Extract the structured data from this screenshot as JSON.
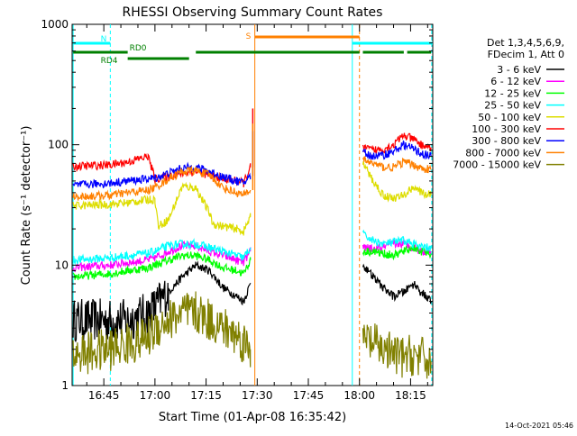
{
  "chart_data": {
    "type": "line",
    "title": "RHESSI Observing Summary Count Rates",
    "xlabel": "Start Time (01-Apr-08 16:35:42)",
    "ylabel": "Count Rate (s⁻¹ detector⁻¹)",
    "y_scale": "log",
    "ylim": [
      1,
      1000
    ],
    "y_ticks": [
      {
        "value": 1,
        "label": "1"
      },
      {
        "value": 10,
        "label": "10"
      },
      {
        "value": 100,
        "label": "100"
      },
      {
        "value": 1000,
        "label": "1000"
      }
    ],
    "x_range_min": [
      35.7,
      141.5
    ],
    "x_ticks": [
      {
        "min": 45,
        "label": "16:45"
      },
      {
        "min": 60,
        "label": "17:00"
      },
      {
        "min": 75,
        "label": "17:15"
      },
      {
        "min": 90,
        "label": "17:30"
      },
      {
        "min": 105,
        "label": "17:45"
      },
      {
        "min": 120,
        "label": "18:00"
      },
      {
        "min": 135,
        "label": "18:15"
      }
    ],
    "timestamp": "14-Oct-2021 05:46",
    "legend": {
      "header": [
        "Det 1,3,4,5,6,9,",
        "FDecim 1, Att 0"
      ],
      "placement": "right"
    },
    "series": [
      {
        "name": "3 - 6 keV",
        "color": "#000000",
        "x": [
          36,
          47,
          52,
          58,
          60,
          64,
          68,
          72,
          76,
          80,
          84,
          86,
          88
        ],
        "y": [
          3.5,
          3.5,
          3.5,
          4,
          4.5,
          6,
          8,
          10,
          9,
          6.5,
          5.5,
          5,
          7
        ]
      },
      {
        "name": "6 - 12 keV",
        "color": "#ff00ff",
        "x": [
          36,
          47,
          52,
          58,
          60,
          64,
          68,
          72,
          76,
          80,
          84,
          86,
          88
        ],
        "y": [
          9.5,
          10,
          10.5,
          11,
          11.5,
          13,
          14.5,
          14.5,
          13,
          12,
          11,
          10.5,
          13
        ]
      },
      {
        "name": "12 - 25 keV",
        "color": "#00ff00",
        "x": [
          36,
          47,
          52,
          58,
          60,
          64,
          68,
          72,
          76,
          80,
          84,
          86,
          88
        ],
        "y": [
          8,
          8.5,
          9,
          9.5,
          10,
          11,
          12,
          12,
          11,
          9.5,
          9,
          8.5,
          11
        ]
      },
      {
        "name": "25 - 50 keV",
        "color": "#00ffff",
        "x": [
          36,
          47,
          52,
          58,
          60,
          64,
          68,
          72,
          76,
          80,
          84,
          86,
          88
        ],
        "y": [
          11,
          11.5,
          12,
          12.5,
          13,
          14.5,
          15,
          15,
          14,
          13,
          12,
          11.5,
          14
        ]
      },
      {
        "name": "50 - 100 keV",
        "color": "#dddd00",
        "x": [
          36,
          47,
          52,
          58,
          60,
          61,
          64,
          68,
          72,
          76,
          77,
          80,
          84,
          86,
          88
        ],
        "y": [
          31,
          32,
          33,
          35,
          35,
          21,
          24,
          45,
          44,
          27,
          22,
          21,
          20,
          19,
          25
        ]
      },
      {
        "name": "100 - 300 keV",
        "color": "#ff0000",
        "x": [
          36,
          47,
          52,
          58,
          60,
          64,
          68,
          72,
          76,
          80,
          84,
          86,
          88
        ],
        "y": [
          66,
          68,
          72,
          80,
          52,
          55,
          58,
          60,
          56,
          52,
          50,
          48,
          65
        ]
      },
      {
        "name": "300 - 800 keV",
        "color": "#0000ff",
        "x": [
          36,
          47,
          52,
          58,
          60,
          64,
          68,
          72,
          76,
          80,
          84,
          86,
          88
        ],
        "y": [
          46,
          48,
          50,
          52,
          53,
          58,
          64,
          65,
          60,
          54,
          50,
          48,
          55
        ]
      },
      {
        "name": "800 - 7000 keV",
        "color": "#ff8000",
        "x": [
          36,
          47,
          52,
          58,
          60,
          64,
          68,
          72,
          76,
          80,
          84,
          86,
          88
        ],
        "y": [
          37,
          38,
          40,
          42,
          44,
          52,
          60,
          61,
          56,
          44,
          40,
          38,
          42
        ]
      },
      {
        "name": "7000 - 15000 keV",
        "color": "#808000",
        "x": [
          36,
          47,
          52,
          58,
          60,
          64,
          68,
          72,
          76,
          80,
          84,
          86,
          88
        ],
        "y": [
          1.8,
          2,
          2.2,
          2.5,
          3,
          3.5,
          4,
          4,
          3.5,
          3,
          2.6,
          2.3,
          2
        ]
      }
    ],
    "series_after_gap": [
      {
        "name": "3 - 6 keV",
        "color": "#000000",
        "x": [
          121,
          124,
          127,
          130,
          133,
          136,
          138,
          141
        ],
        "y": [
          10,
          8,
          6.5,
          5.5,
          6,
          7,
          6,
          5
        ]
      },
      {
        "name": "6 - 12 keV",
        "color": "#ff00ff",
        "x": [
          121,
          124,
          127,
          130,
          133,
          136,
          138,
          141
        ],
        "y": [
          14,
          13.5,
          14,
          15,
          15,
          14,
          13,
          13
        ]
      },
      {
        "name": "12 - 25 keV",
        "color": "#00ff00",
        "x": [
          121,
          124,
          127,
          130,
          133,
          136,
          138,
          141
        ],
        "y": [
          13,
          13,
          12.5,
          12,
          13,
          14,
          13,
          12.5
        ]
      },
      {
        "name": "25 - 50 keV",
        "color": "#00ffff",
        "x": [
          121,
          124,
          127,
          130,
          133,
          136,
          138,
          141
        ],
        "y": [
          18,
          16,
          15,
          15.5,
          16,
          15,
          14,
          14
        ]
      },
      {
        "name": "50 - 100 keV",
        "color": "#dddd00",
        "x": [
          121,
          124,
          127,
          130,
          133,
          136,
          138,
          141
        ],
        "y": [
          70,
          50,
          38,
          36,
          38,
          45,
          40,
          38
        ]
      },
      {
        "name": "100 - 300 keV",
        "color": "#ff0000",
        "x": [
          121,
          124,
          127,
          130,
          133,
          136,
          138,
          141
        ],
        "y": [
          95,
          90,
          92,
          100,
          120,
          110,
          100,
          95
        ]
      },
      {
        "name": "300 - 800 keV",
        "color": "#0000ff",
        "x": [
          121,
          124,
          127,
          130,
          133,
          136,
          138,
          141
        ],
        "y": [
          85,
          80,
          82,
          88,
          100,
          92,
          85,
          80
        ]
      },
      {
        "name": "800 - 7000 keV",
        "color": "#ff8000",
        "x": [
          121,
          124,
          127,
          130,
          133,
          136,
          138,
          141
        ],
        "y": [
          75,
          70,
          65,
          65,
          72,
          68,
          64,
          62
        ]
      },
      {
        "name": "7000 - 15000 keV",
        "color": "#808000",
        "x": [
          121,
          124,
          127,
          130,
          133,
          136,
          138,
          141
        ],
        "y": [
          2.5,
          2.2,
          2,
          1.8,
          1.7,
          1.8,
          1.7,
          1.6
        ]
      }
    ],
    "spikes": [
      {
        "series": "100 - 300 keV",
        "x": 88.7,
        "y": 200
      },
      {
        "series": "300 - 800 keV",
        "x": 88.7,
        "y": 130
      },
      {
        "series": "800 - 7000 keV",
        "x": 88.7,
        "y": 150
      }
    ],
    "annotations": {
      "night_bars": [
        {
          "label": "N",
          "color": "#00ffff",
          "start": 36,
          "end": 46.9
        },
        {
          "label": "",
          "color": "#00ffff",
          "start": 117.9,
          "end": 141.5
        }
      ],
      "saa_bars": [
        {
          "label": "S",
          "color": "#ff8000",
          "start": 89.3,
          "end": 120
        }
      ],
      "rd_bars": [
        {
          "label": "RD0",
          "color": "#008000",
          "start": 36,
          "end": 52
        },
        {
          "label": "RD4",
          "color": "#008000",
          "start": 52,
          "end": 70
        },
        {
          "label": "",
          "color": "#008000",
          "start": 72,
          "end": 120
        },
        {
          "label": "",
          "color": "#008000",
          "start": 121,
          "end": 133
        },
        {
          "label": "",
          "color": "#008000",
          "start": 134,
          "end": 141
        }
      ],
      "vlines": [
        {
          "x": 36,
          "color": "#00ffff",
          "dashed": false
        },
        {
          "x": 46.9,
          "color": "#00ffff",
          "dashed": true
        },
        {
          "x": 89.3,
          "color": "#ff8000",
          "dashed": false
        },
        {
          "x": 117.9,
          "color": "#00ffff",
          "dashed": false
        },
        {
          "x": 120,
          "color": "#ff8000",
          "dashed": true
        },
        {
          "x": 141.2,
          "color": "#00ffff",
          "dashed": true
        }
      ]
    }
  }
}
